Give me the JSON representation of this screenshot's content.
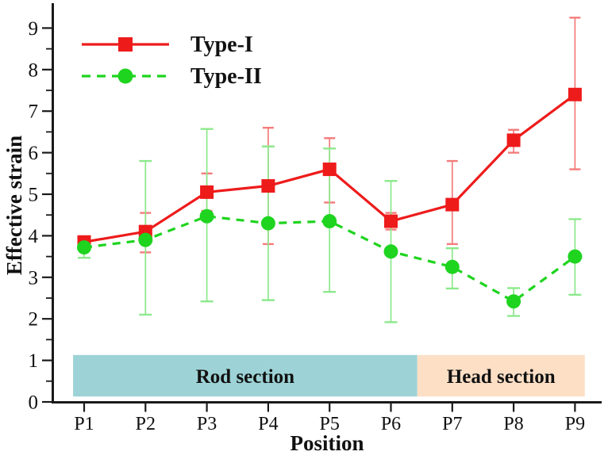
{
  "chart_data": {
    "type": "line",
    "title": "",
    "xlabel": "Position",
    "ylabel": "Effective strain",
    "categories": [
      "P1",
      "P2",
      "P3",
      "P4",
      "P5",
      "P6",
      "P7",
      "P8",
      "P9"
    ],
    "yticks": [
      0,
      1,
      2,
      3,
      4,
      5,
      6,
      7,
      8,
      9
    ],
    "ylim": [
      0,
      9.5
    ],
    "grid": false,
    "legend_position": "top-left",
    "axis_color": "#1a1a1a",
    "text_color": "#111111",
    "series": [
      {
        "name": "Type-I",
        "color": "#ee1b1b",
        "error_color": "#f47c7c",
        "marker": "square",
        "line_style": "solid",
        "values": [
          3.85,
          4.1,
          5.05,
          5.2,
          5.6,
          4.35,
          4.75,
          6.3,
          7.4
        ],
        "err_plus": [
          0.12,
          0.45,
          0.45,
          1.4,
          0.75,
          0.2,
          1.05,
          0.25,
          1.85
        ],
        "err_minus": [
          0.12,
          0.5,
          0.45,
          1.4,
          0.8,
          0.2,
          0.95,
          0.3,
          1.8
        ]
      },
      {
        "name": "Type-II",
        "color": "#1fd41f",
        "error_color": "#8ce98c",
        "marker": "circle",
        "line_style": "dashed",
        "values": [
          3.72,
          3.9,
          4.47,
          4.3,
          4.35,
          3.62,
          3.25,
          2.42,
          3.5
        ],
        "err_plus": [
          0.2,
          1.9,
          2.1,
          1.85,
          1.75,
          1.7,
          0.45,
          0.32,
          0.9
        ],
        "err_minus": [
          0.25,
          1.8,
          2.05,
          1.85,
          1.7,
          1.7,
          0.52,
          0.35,
          0.92
        ]
      }
    ],
    "bands": [
      {
        "label": "Rod section",
        "color": "#9dd3d6",
        "from_x": 0.82,
        "to_x": 6.43,
        "y_from": 0.13,
        "y_to": 1.13
      },
      {
        "label": "Head section",
        "color": "#fcdfc5",
        "from_x": 6.43,
        "to_x": 9.16,
        "y_from": 0.13,
        "y_to": 1.13
      }
    ]
  }
}
